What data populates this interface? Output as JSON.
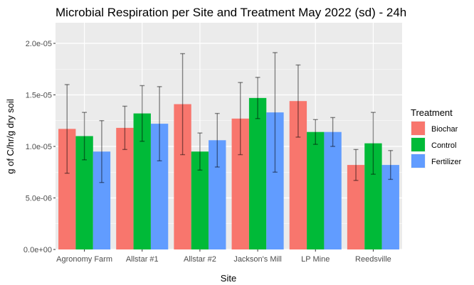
{
  "chart_data": {
    "type": "bar",
    "title": "Microbial Respiration per Site and Treatment May 2022 (sd) - 24h",
    "xlabel": "Site",
    "ylabel": "g of C/hr/g dry soil",
    "categories": [
      "Agronomy Farm",
      "Allstar #1",
      "Allstar #2",
      "Jackson's Mill",
      "LP Mine",
      "Reedsville"
    ],
    "ylim": [
      0,
      2.2e-05
    ],
    "yticks": [
      0,
      5e-06,
      1e-05,
      1.5e-05,
      2e-05
    ],
    "ytick_labels": [
      "0.0e+00",
      "5.0e-06",
      "1.0e-05",
      "1.5e-05",
      "2.0e-05"
    ],
    "legend_title": "Treatment",
    "legend_position": "right",
    "grid": true,
    "series": [
      {
        "name": "Biochar",
        "color": "#F8766D",
        "values": [
          1.17e-05,
          1.18e-05,
          1.41e-05,
          1.27e-05,
          1.44e-05,
          8.2e-06
        ],
        "sd": [
          4.3e-06,
          2.1e-06,
          4.9e-06,
          3.5e-06,
          3.5e-06,
          1.5e-06
        ]
      },
      {
        "name": "Control",
        "color": "#00BA38",
        "values": [
          1.1e-05,
          1.32e-05,
          9.5e-06,
          1.47e-05,
          1.14e-05,
          1.03e-05
        ],
        "sd": [
          2.3e-06,
          2.7e-06,
          1.8e-06,
          2e-06,
          1.2e-06,
          3e-06
        ]
      },
      {
        "name": "Fertilizer",
        "color": "#619CFF",
        "values": [
          9.5e-06,
          1.22e-05,
          1.06e-05,
          1.33e-05,
          1.14e-05,
          8.2e-06
        ],
        "sd": [
          3e-06,
          3.6e-06,
          2.6e-06,
          5.8e-06,
          1.4e-06,
          1.4e-06
        ]
      }
    ]
  }
}
